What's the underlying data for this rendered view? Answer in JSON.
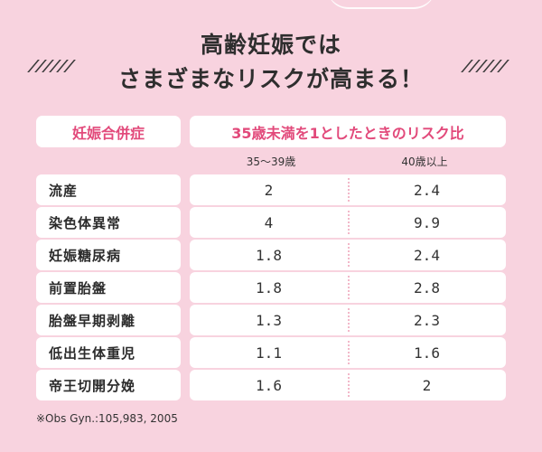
{
  "title": {
    "line1": "高齢妊娠では",
    "line2": "さまざまなリスクが高まる！"
  },
  "table": {
    "header_left": "妊娠合併症",
    "header_right": "35歳未満を1としたときのリスク比",
    "subheader_col1": "35～39歳",
    "subheader_col2": "40歳以上",
    "rows": [
      {
        "label": "流産",
        "col1": "2",
        "col2": "2.4"
      },
      {
        "label": "染色体異常",
        "col1": "4",
        "col2": "9.9"
      },
      {
        "label": "妊娠糖尿病",
        "col1": "1.8",
        "col2": "2.4"
      },
      {
        "label": "前置胎盤",
        "col1": "1.8",
        "col2": "2.8"
      },
      {
        "label": "胎盤早期剥離",
        "col1": "1.3",
        "col2": "2.3"
      },
      {
        "label": "低出生体重児",
        "col1": "1.1",
        "col2": "1.6"
      },
      {
        "label": "帝王切開分娩",
        "col1": "1.6",
        "col2": "2"
      }
    ]
  },
  "footnote": "※Obs Gyn.:105,983, 2005",
  "colors": {
    "background": "#f8d3df",
    "accent": "#e24a7b",
    "panel": "#ffffff"
  }
}
